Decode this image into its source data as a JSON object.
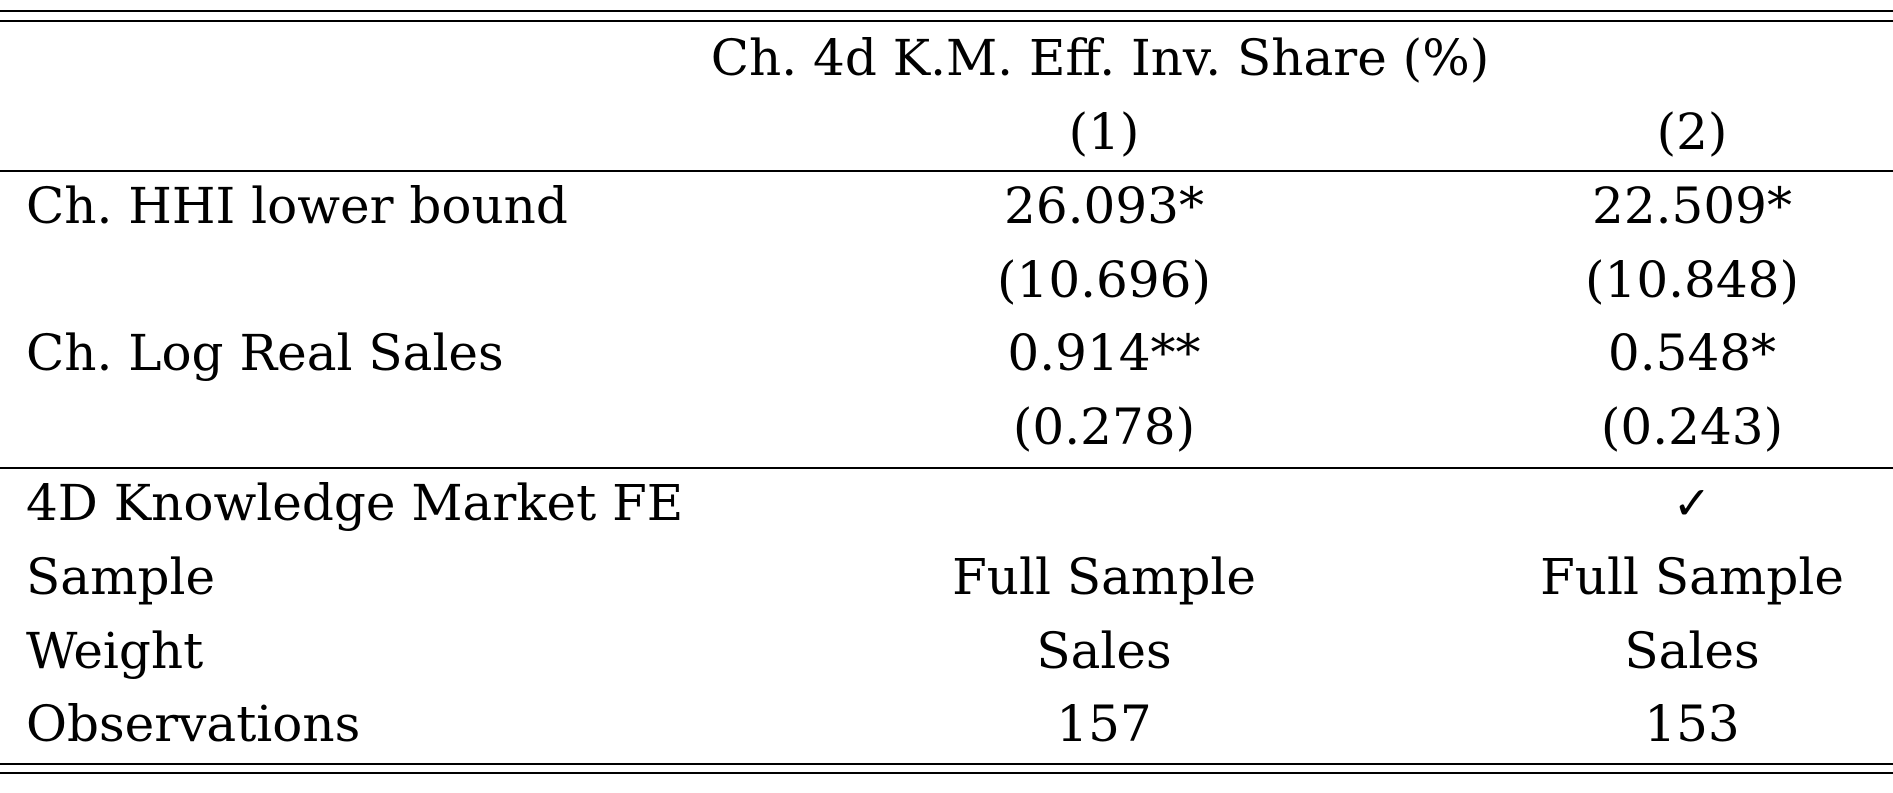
{
  "table": {
    "header": {
      "dependent_variable": "Ch. 4d K.M. Eff. Inv. Share (%)",
      "columns": [
        "(1)",
        "(2)"
      ]
    },
    "coefficients": [
      {
        "label": "Ch. HHI lower bound",
        "values": [
          "26.093*",
          "22.509*"
        ],
        "std_errors": [
          "(10.696)",
          "(10.848)"
        ]
      },
      {
        "label": "Ch. Log Real Sales",
        "values": [
          "0.914**",
          "0.548*"
        ],
        "std_errors": [
          "(0.278)",
          "(0.243)"
        ]
      }
    ],
    "footer_rows": [
      {
        "label": "4D Knowledge Market FE",
        "values": [
          "",
          "✓"
        ]
      },
      {
        "label": "Sample",
        "values": [
          "Full Sample",
          "Full Sample"
        ]
      },
      {
        "label": "Weight",
        "values": [
          "Sales",
          "Sales"
        ]
      },
      {
        "label": "Observations",
        "values": [
          "157",
          "153"
        ]
      }
    ]
  }
}
